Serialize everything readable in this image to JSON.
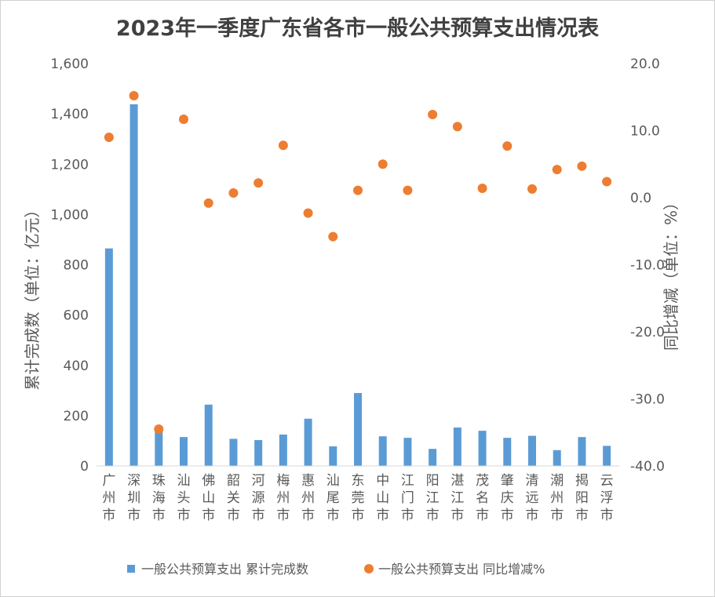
{
  "chart_data": {
    "type": "bar",
    "title": "2023年一季度广东省各市一般公共预算支出情况表",
    "categories": [
      "广州市",
      "深圳市",
      "珠海市",
      "汕头市",
      "佛山市",
      "韶关市",
      "河源市",
      "梅州市",
      "惠州市",
      "汕尾市",
      "东莞市",
      "中山市",
      "江门市",
      "阳江市",
      "湛江市",
      "茂名市",
      "肇庆市",
      "清远市",
      "潮州市",
      "揭阳市",
      "云浮市"
    ],
    "series": [
      {
        "name": "一般公共预算支出 累计完成数",
        "type": "bar",
        "axis": "left",
        "color": "#5b9bd5",
        "values": [
          865,
          1438,
          140,
          115,
          244,
          108,
          103,
          125,
          188,
          78,
          290,
          118,
          112,
          68,
          153,
          140,
          112,
          120,
          63,
          115,
          80
        ]
      },
      {
        "name": "一般公共预算支出 同比增减%",
        "type": "scatter",
        "axis": "right",
        "color": "#ed7d31",
        "values": [
          9.0,
          15.2,
          -34.5,
          11.7,
          -0.8,
          0.7,
          2.2,
          7.8,
          -2.3,
          -5.8,
          1.1,
          5.0,
          1.1,
          12.4,
          10.6,
          1.4,
          7.7,
          1.3,
          4.2,
          4.7,
          2.4
        ]
      }
    ],
    "ylabel_left": "累计完成数（单位：亿元）",
    "ylabel_right": "同比增减（单位：%）",
    "ylim_left": [
      0,
      1600
    ],
    "ylim_right": [
      -40,
      20
    ],
    "yticks_left": [
      "0",
      "200",
      "400",
      "600",
      "800",
      "1,000",
      "1,200",
      "1,400",
      "1,600"
    ],
    "yticks_right": [
      "-40.0",
      "-30.0",
      "-20.0",
      "-10.0",
      "0.0",
      "10.0",
      "20.0"
    ],
    "grid": false,
    "legend_position": "bottom"
  }
}
